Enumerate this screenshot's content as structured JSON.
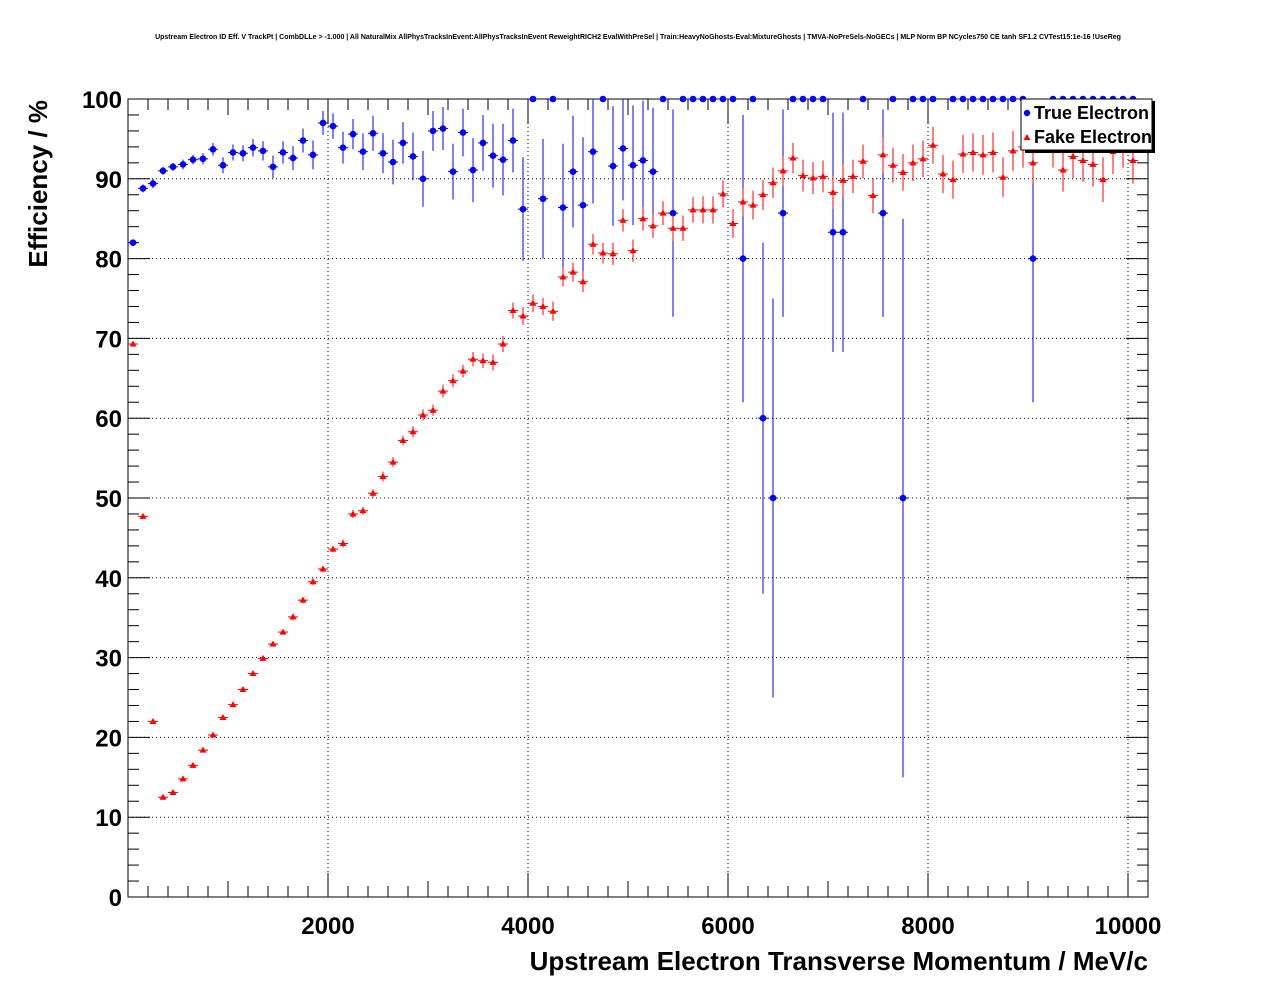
{
  "chart_data": {
    "type": "scatter",
    "title": "Upstream Electron ID Eff. V TrackPt | CombDLLe > -1.000 | All NaturalMix AllPhysTracksInEvent:AllPhysTracksInEvent ReweightRICH2 EvalWithPreSel | Train:HeavyNoGhosts-Eval:MixtureGhosts | TMVA-NoPreSels-NoGECs | MLP Norm BP NCycles750 CE tanh SF1.2 CVTest15:1e-16 !UseReg",
    "xlabel": "Upstream Electron Transverse Momentum / MeV/c",
    "ylabel": "Efficiency / %",
    "xlim": [
      0,
      10200
    ],
    "ylim": [
      0,
      100
    ],
    "xticks": [
      "2000",
      "4000",
      "6000",
      "8000",
      "10000"
    ],
    "yticks": [
      "0",
      "10",
      "20",
      "30",
      "40",
      "50",
      "60",
      "70",
      "80",
      "90",
      "100"
    ],
    "grid": true,
    "legend_position": "top-right",
    "series": [
      {
        "name": "True Electron",
        "color": "#0000ff",
        "marker": "circle",
        "points": [
          [
            50,
            82.0,
            0.3
          ],
          [
            150,
            88.8,
            0.5
          ],
          [
            250,
            89.4,
            0.6
          ],
          [
            350,
            91.0,
            0.5
          ],
          [
            450,
            91.5,
            0.5
          ],
          [
            550,
            91.8,
            0.6
          ],
          [
            650,
            92.4,
            0.6
          ],
          [
            750,
            92.5,
            0.7
          ],
          [
            850,
            93.7,
            0.8
          ],
          [
            950,
            91.7,
            1.0
          ],
          [
            1050,
            93.3,
            1.0
          ],
          [
            1150,
            93.2,
            1.0
          ],
          [
            1250,
            93.9,
            1.1
          ],
          [
            1350,
            93.5,
            1.2
          ],
          [
            1450,
            91.5,
            1.4
          ],
          [
            1550,
            93.3,
            1.4
          ],
          [
            1650,
            92.6,
            1.5
          ],
          [
            1750,
            94.8,
            1.5
          ],
          [
            1850,
            93.0,
            1.8
          ],
          [
            1950,
            97.0,
            1.5
          ],
          [
            2050,
            96.6,
            1.6
          ],
          [
            2150,
            93.9,
            2.0
          ],
          [
            2250,
            95.6,
            1.9
          ],
          [
            2350,
            93.4,
            2.3
          ],
          [
            2450,
            95.7,
            2.2
          ],
          [
            2550,
            93.2,
            2.5
          ],
          [
            2650,
            92.1,
            2.8
          ],
          [
            2750,
            94.5,
            2.6
          ],
          [
            2850,
            92.8,
            3.0
          ],
          [
            2950,
            90.0,
            3.5
          ],
          [
            3050,
            96.0,
            2.5
          ],
          [
            3150,
            96.3,
            2.7
          ],
          [
            3250,
            90.9,
            3.5
          ],
          [
            3350,
            95.8,
            3.0
          ],
          [
            3450,
            91.1,
            4.0
          ],
          [
            3550,
            94.5,
            3.5
          ],
          [
            3650,
            92.9,
            4.0
          ],
          [
            3750,
            92.4,
            4.5
          ],
          [
            3850,
            94.8,
            4.0
          ],
          [
            3950,
            86.2,
            6.5
          ],
          [
            4050,
            100,
            0
          ],
          [
            4150,
            87.5,
            7.5
          ],
          [
            4250,
            100,
            0
          ],
          [
            4350,
            86.4,
            8.0
          ],
          [
            4450,
            90.9,
            7.0
          ],
          [
            4550,
            86.7,
            8.5
          ],
          [
            4650,
            93.4,
            6.5
          ],
          [
            4750,
            100,
            0
          ],
          [
            4850,
            91.6,
            7.5
          ],
          [
            4950,
            93.8,
            6.5
          ],
          [
            5050,
            91.7,
            7.5
          ],
          [
            5150,
            92.3,
            7.5
          ],
          [
            5250,
            90.9,
            8.0
          ],
          [
            5350,
            100,
            0
          ],
          [
            5450,
            85.7,
            13.0
          ],
          [
            5550,
            100,
            0
          ],
          [
            5650,
            100,
            0
          ],
          [
            5750,
            100,
            0
          ],
          [
            5850,
            100,
            0
          ],
          [
            5950,
            100,
            0
          ],
          [
            6050,
            100,
            0
          ],
          [
            6150,
            80.0,
            18.0
          ],
          [
            6250,
            100,
            0
          ],
          [
            6350,
            60.0,
            22.0
          ],
          [
            6450,
            50.0,
            25.0
          ],
          [
            6550,
            85.7,
            13.0
          ],
          [
            6650,
            100,
            0
          ],
          [
            6750,
            100,
            0
          ],
          [
            6850,
            100,
            0
          ],
          [
            6950,
            100,
            0
          ],
          [
            7050,
            83.3,
            15.0
          ],
          [
            7150,
            83.3,
            15.0
          ],
          [
            7350,
            100,
            0
          ],
          [
            7550,
            85.7,
            13.0
          ],
          [
            7650,
            100,
            0
          ],
          [
            7750,
            50.0,
            35.0
          ],
          [
            7850,
            100,
            0
          ],
          [
            7950,
            100,
            0
          ],
          [
            8050,
            100,
            0
          ],
          [
            8250,
            100,
            0
          ],
          [
            8350,
            100,
            0
          ],
          [
            8450,
            100,
            0
          ],
          [
            8550,
            100,
            0
          ],
          [
            8650,
            100,
            0
          ],
          [
            8750,
            100,
            0
          ],
          [
            8850,
            100,
            0
          ],
          [
            8950,
            100,
            0
          ],
          [
            9050,
            80.0,
            18.0
          ],
          [
            9250,
            100,
            0
          ],
          [
            9350,
            100,
            0
          ],
          [
            9450,
            100,
            0
          ],
          [
            9550,
            100,
            0
          ],
          [
            9650,
            100,
            0
          ],
          [
            9750,
            100,
            0
          ],
          [
            9850,
            100,
            0
          ],
          [
            9950,
            100,
            0
          ],
          [
            10050,
            100,
            0
          ]
        ]
      },
      {
        "name": "Fake Electron",
        "color": "#ff0000",
        "marker": "triangle",
        "points": [
          [
            50,
            69.3,
            0.2
          ],
          [
            150,
            47.7,
            0.2
          ],
          [
            250,
            22.0,
            0.2
          ],
          [
            350,
            12.5,
            0.2
          ],
          [
            450,
            13.1,
            0.2
          ],
          [
            550,
            14.8,
            0.2
          ],
          [
            650,
            16.5,
            0.2
          ],
          [
            750,
            18.4,
            0.2
          ],
          [
            850,
            20.3,
            0.3
          ],
          [
            950,
            22.5,
            0.3
          ],
          [
            1050,
            24.1,
            0.3
          ],
          [
            1150,
            26.0,
            0.3
          ],
          [
            1250,
            28.0,
            0.3
          ],
          [
            1350,
            29.9,
            0.3
          ],
          [
            1450,
            31.7,
            0.3
          ],
          [
            1550,
            33.2,
            0.3
          ],
          [
            1650,
            35.1,
            0.4
          ],
          [
            1750,
            37.2,
            0.4
          ],
          [
            1850,
            39.5,
            0.4
          ],
          [
            1950,
            41.1,
            0.4
          ],
          [
            2050,
            43.6,
            0.4
          ],
          [
            2150,
            44.3,
            0.5
          ],
          [
            2250,
            48.0,
            0.5
          ],
          [
            2350,
            48.4,
            0.5
          ],
          [
            2450,
            50.6,
            0.5
          ],
          [
            2550,
            52.7,
            0.6
          ],
          [
            2650,
            54.5,
            0.6
          ],
          [
            2750,
            57.2,
            0.6
          ],
          [
            2850,
            58.3,
            0.7
          ],
          [
            2950,
            60.4,
            0.7
          ],
          [
            3050,
            61.0,
            0.7
          ],
          [
            3150,
            63.4,
            0.8
          ],
          [
            3250,
            64.7,
            0.8
          ],
          [
            3350,
            65.9,
            0.8
          ],
          [
            3450,
            67.4,
            0.9
          ],
          [
            3550,
            67.2,
            0.9
          ],
          [
            3650,
            67.0,
            1.0
          ],
          [
            3750,
            69.3,
            1.0
          ],
          [
            3850,
            73.5,
            1.0
          ],
          [
            3950,
            72.8,
            1.1
          ],
          [
            4050,
            74.4,
            1.1
          ],
          [
            4150,
            74.0,
            1.1
          ],
          [
            4250,
            73.4,
            1.2
          ],
          [
            4350,
            77.7,
            1.2
          ],
          [
            4450,
            78.3,
            1.2
          ],
          [
            4550,
            77.1,
            1.3
          ],
          [
            4650,
            81.8,
            1.3
          ],
          [
            4750,
            80.7,
            1.3
          ],
          [
            4850,
            80.6,
            1.4
          ],
          [
            4950,
            84.8,
            1.4
          ],
          [
            5050,
            81.0,
            1.4
          ],
          [
            5150,
            85.0,
            1.5
          ],
          [
            5250,
            84.1,
            1.5
          ],
          [
            5350,
            85.7,
            1.5
          ],
          [
            5450,
            83.8,
            1.6
          ],
          [
            5550,
            83.8,
            1.6
          ],
          [
            5650,
            86.1,
            1.6
          ],
          [
            5750,
            86.1,
            1.7
          ],
          [
            5850,
            86.1,
            1.7
          ],
          [
            5950,
            88.1,
            1.7
          ],
          [
            6050,
            84.4,
            1.8
          ],
          [
            6150,
            87.1,
            1.8
          ],
          [
            6250,
            86.7,
            1.8
          ],
          [
            6350,
            88.0,
            1.9
          ],
          [
            6450,
            89.5,
            1.9
          ],
          [
            6550,
            91.0,
            1.9
          ],
          [
            6650,
            92.6,
            1.9
          ],
          [
            6750,
            90.4,
            2.0
          ],
          [
            6850,
            90.1,
            2.0
          ],
          [
            6950,
            90.3,
            2.0
          ],
          [
            7050,
            88.3,
            2.1
          ],
          [
            7150,
            89.8,
            2.1
          ],
          [
            7250,
            90.3,
            2.1
          ],
          [
            7350,
            92.2,
            2.1
          ],
          [
            7450,
            87.9,
            2.2
          ],
          [
            7550,
            93.0,
            2.2
          ],
          [
            7650,
            91.7,
            2.2
          ],
          [
            7750,
            90.8,
            2.3
          ],
          [
            7850,
            92.0,
            2.3
          ],
          [
            7950,
            92.5,
            2.3
          ],
          [
            8050,
            94.2,
            2.3
          ],
          [
            8150,
            90.6,
            2.4
          ],
          [
            8250,
            89.9,
            2.4
          ],
          [
            8350,
            93.1,
            2.4
          ],
          [
            8450,
            93.3,
            2.4
          ],
          [
            8550,
            93.0,
            2.5
          ],
          [
            8650,
            93.3,
            2.5
          ],
          [
            8750,
            90.2,
            2.5
          ],
          [
            8850,
            93.5,
            2.5
          ],
          [
            8950,
            94.0,
            2.6
          ],
          [
            9050,
            92.0,
            2.6
          ],
          [
            9250,
            94.0,
            2.6
          ],
          [
            9350,
            91.1,
            2.7
          ],
          [
            9450,
            92.8,
            2.7
          ],
          [
            9550,
            92.3,
            2.7
          ],
          [
            9650,
            91.8,
            2.8
          ],
          [
            9750,
            89.9,
            2.8
          ],
          [
            9850,
            93.4,
            2.8
          ],
          [
            9950,
            94.3,
            2.9
          ],
          [
            10050,
            92.3,
            2.9
          ]
        ]
      }
    ]
  }
}
